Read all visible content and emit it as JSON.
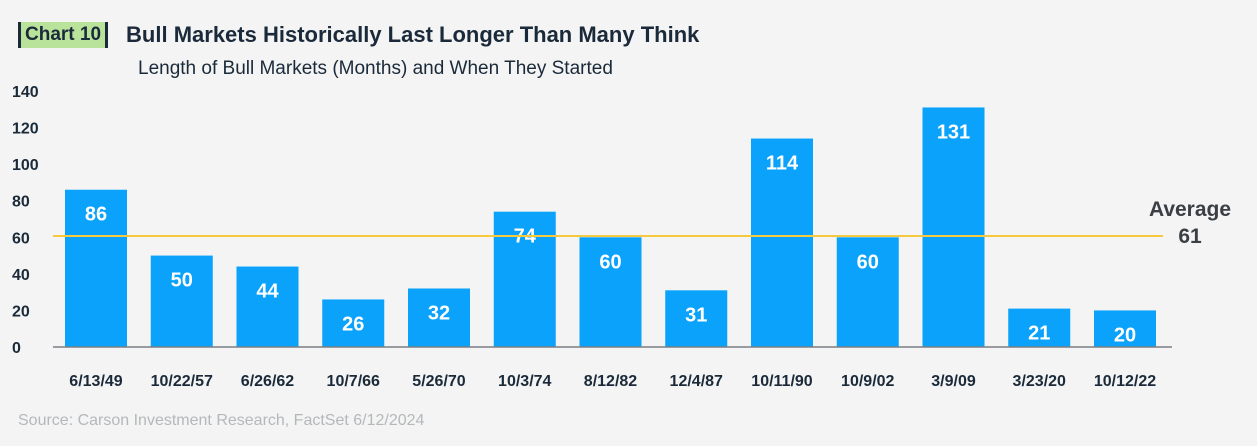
{
  "header": {
    "tag": "Chart 10",
    "title": "Bull Markets Historically Last Longer Than Many Think",
    "subtitle": "Length of Bull Markets (Months) and When They Started"
  },
  "source": "Source: Carson Investment Research, FactSet 6/12/2024",
  "colors": {
    "bar": "#0aa2fa",
    "average_line": "#f7c93e",
    "axis": "#7a7f84"
  },
  "chart_data": {
    "type": "bar",
    "title": "Bull Markets Historically Last Longer Than Many Think",
    "subtitle": "Length of Bull Markets (Months) and When They Started",
    "xlabel": "",
    "ylabel": "",
    "categories": [
      "6/13/49",
      "10/22/57",
      "6/26/62",
      "10/7/66",
      "5/26/70",
      "10/3/74",
      "8/12/82",
      "12/4/87",
      "10/11/90",
      "10/9/02",
      "3/9/09",
      "3/23/20",
      "10/12/22"
    ],
    "values": [
      86,
      50,
      44,
      26,
      32,
      74,
      60,
      31,
      114,
      60,
      131,
      21,
      20
    ],
    "ylim": [
      0,
      140
    ],
    "yticks": [
      0,
      20,
      40,
      60,
      80,
      100,
      120,
      140
    ],
    "grid": false,
    "average": {
      "value": 61,
      "label": "Average",
      "value_label": "61"
    }
  }
}
